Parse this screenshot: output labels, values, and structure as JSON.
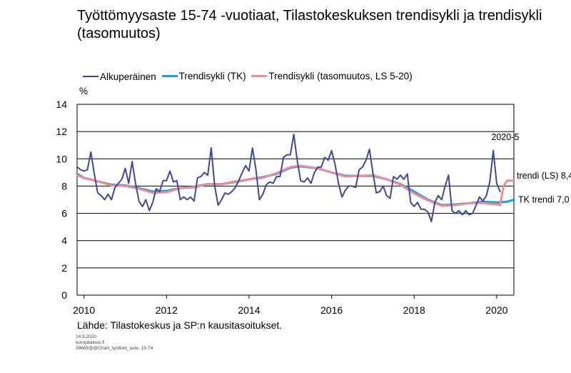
{
  "chart_data": {
    "type": "line",
    "title": "Työttömyysaste 15-74 -vuotiaat, Tilastokeskuksen trendisykli ja trendisykli (tasomuutos)",
    "ylabel": "%",
    "xlabel": "",
    "ylim": [
      0,
      14
    ],
    "yticks": [
      "0",
      "2",
      "4",
      "6",
      "8",
      "10",
      "12",
      "14"
    ],
    "xlim": [
      2009.833,
      2020.417
    ],
    "xticks": [
      "2010",
      "2012",
      "2014",
      "2016",
      "2018",
      "2020"
    ],
    "grid": "horizontal",
    "legend_position": "top",
    "series": [
      {
        "name": "Alkuperäinen",
        "color": "#404896",
        "points": [
          [
            2009.833,
            9.4
          ],
          [
            2009.917,
            9.2
          ],
          [
            2010.0,
            9.1
          ],
          [
            2010.083,
            9.2
          ],
          [
            2010.167,
            10.5
          ],
          [
            2010.25,
            8.9
          ],
          [
            2010.333,
            7.5
          ],
          [
            2010.417,
            7.3
          ],
          [
            2010.5,
            7.0
          ],
          [
            2010.583,
            7.4
          ],
          [
            2010.667,
            7.0
          ],
          [
            2010.75,
            7.9
          ],
          [
            2010.833,
            8.2
          ],
          [
            2010.917,
            8.5
          ],
          [
            2011.0,
            9.3
          ],
          [
            2011.083,
            8.2
          ],
          [
            2011.167,
            9.8
          ],
          [
            2011.25,
            8.2
          ],
          [
            2011.333,
            6.9
          ],
          [
            2011.417,
            6.5
          ],
          [
            2011.5,
            7.0
          ],
          [
            2011.583,
            6.2
          ],
          [
            2011.667,
            6.8
          ],
          [
            2011.75,
            7.8
          ],
          [
            2011.833,
            7.6
          ],
          [
            2011.917,
            8.4
          ],
          [
            2012.0,
            8.4
          ],
          [
            2012.083,
            9.1
          ],
          [
            2012.167,
            8.3
          ],
          [
            2012.25,
            8.4
          ],
          [
            2012.333,
            7.0
          ],
          [
            2012.417,
            7.2
          ],
          [
            2012.5,
            7.0
          ],
          [
            2012.583,
            7.2
          ],
          [
            2012.667,
            6.9
          ],
          [
            2012.75,
            8.6
          ],
          [
            2012.833,
            8.7
          ],
          [
            2012.917,
            9.0
          ],
          [
            2013.0,
            8.8
          ],
          [
            2013.083,
            10.8
          ],
          [
            2013.167,
            8.0
          ],
          [
            2013.25,
            6.6
          ],
          [
            2013.333,
            7.0
          ],
          [
            2013.417,
            7.5
          ],
          [
            2013.5,
            7.4
          ],
          [
            2013.583,
            7.6
          ],
          [
            2013.667,
            7.9
          ],
          [
            2013.75,
            8.4
          ],
          [
            2013.833,
            9.0
          ],
          [
            2013.917,
            9.5
          ],
          [
            2014.0,
            9.1
          ],
          [
            2014.083,
            10.8
          ],
          [
            2014.167,
            9.2
          ],
          [
            2014.25,
            7.0
          ],
          [
            2014.333,
            7.4
          ],
          [
            2014.417,
            8.1
          ],
          [
            2014.5,
            8.3
          ],
          [
            2014.583,
            8.2
          ],
          [
            2014.667,
            8.7
          ],
          [
            2014.75,
            8.7
          ],
          [
            2014.833,
            10.1
          ],
          [
            2014.917,
            10.3
          ],
          [
            2015.0,
            10.3
          ],
          [
            2015.083,
            11.8
          ],
          [
            2015.167,
            9.9
          ],
          [
            2015.25,
            8.4
          ],
          [
            2015.333,
            8.3
          ],
          [
            2015.417,
            8.6
          ],
          [
            2015.5,
            8.2
          ],
          [
            2015.583,
            9.0
          ],
          [
            2015.667,
            9.4
          ],
          [
            2015.75,
            9.4
          ],
          [
            2015.833,
            10.1
          ],
          [
            2015.917,
            9.9
          ],
          [
            2016.0,
            10.6
          ],
          [
            2016.083,
            9.6
          ],
          [
            2016.167,
            8.2
          ],
          [
            2016.25,
            7.2
          ],
          [
            2016.333,
            7.7
          ],
          [
            2016.417,
            8.0
          ],
          [
            2016.5,
            8.0
          ],
          [
            2016.583,
            7.9
          ],
          [
            2016.667,
            9.2
          ],
          [
            2016.75,
            9.4
          ],
          [
            2016.833,
            9.9
          ],
          [
            2016.917,
            10.7
          ],
          [
            2017.0,
            9.0
          ],
          [
            2017.083,
            7.5
          ],
          [
            2017.167,
            7.6
          ],
          [
            2017.25,
            8.0
          ],
          [
            2017.333,
            7.3
          ],
          [
            2017.417,
            7.1
          ],
          [
            2017.5,
            8.7
          ],
          [
            2017.583,
            8.5
          ],
          [
            2017.667,
            8.8
          ],
          [
            2017.75,
            8.5
          ],
          [
            2017.833,
            8.9
          ],
          [
            2017.917,
            6.8
          ],
          [
            2018.0,
            6.5
          ],
          [
            2018.083,
            6.8
          ],
          [
            2018.167,
            6.3
          ],
          [
            2018.25,
            6.3
          ],
          [
            2018.333,
            6.1
          ],
          [
            2018.417,
            5.4
          ],
          [
            2018.5,
            6.8
          ],
          [
            2018.583,
            7.3
          ],
          [
            2018.667,
            7.0
          ],
          [
            2018.75,
            8.0
          ],
          [
            2018.833,
            8.8
          ],
          [
            2018.917,
            6.2
          ],
          [
            2019.0,
            6.0
          ],
          [
            2019.083,
            6.2
          ],
          [
            2019.167,
            5.9
          ],
          [
            2019.25,
            6.2
          ],
          [
            2019.333,
            5.9
          ],
          [
            2019.417,
            6.0
          ],
          [
            2019.5,
            6.6
          ],
          [
            2019.583,
            7.2
          ],
          [
            2019.667,
            6.9
          ],
          [
            2019.75,
            7.3
          ],
          [
            2019.833,
            8.3
          ],
          [
            2019.917,
            10.6
          ],
          [
            2020.0,
            8.2
          ],
          [
            2020.083,
            7.6
          ]
        ]
      },
      {
        "name": "Trendisykli (TK)",
        "color": "#1f9fd9",
        "points": [
          [
            2009.833,
            8.9
          ],
          [
            2010.0,
            8.6
          ],
          [
            2010.333,
            8.35
          ],
          [
            2010.667,
            8.1
          ],
          [
            2011.0,
            8.05
          ],
          [
            2011.333,
            7.85
          ],
          [
            2011.667,
            7.6
          ],
          [
            2012.0,
            7.65
          ],
          [
            2012.333,
            7.85
          ],
          [
            2012.667,
            7.95
          ],
          [
            2013.0,
            8.15
          ],
          [
            2013.333,
            8.15
          ],
          [
            2013.667,
            8.3
          ],
          [
            2014.0,
            8.5
          ],
          [
            2014.333,
            8.65
          ],
          [
            2014.667,
            8.9
          ],
          [
            2015.0,
            9.35
          ],
          [
            2015.25,
            9.45
          ],
          [
            2015.667,
            9.3
          ],
          [
            2016.0,
            9.0
          ],
          [
            2016.333,
            8.75
          ],
          [
            2016.667,
            8.75
          ],
          [
            2017.0,
            8.75
          ],
          [
            2017.333,
            8.5
          ],
          [
            2017.667,
            8.15
          ],
          [
            2018.0,
            7.6
          ],
          [
            2018.333,
            7.0
          ],
          [
            2018.667,
            6.6
          ],
          [
            2019.0,
            6.65
          ],
          [
            2019.333,
            6.75
          ],
          [
            2019.667,
            6.85
          ],
          [
            2020.0,
            6.8
          ],
          [
            2020.25,
            6.85
          ],
          [
            2020.417,
            7.0
          ]
        ]
      },
      {
        "name": "Trendisykli (tasomuutos, LS 5-20)",
        "color": "#eb8d96",
        "points": [
          [
            2009.833,
            8.8
          ],
          [
            2010.0,
            8.6
          ],
          [
            2010.333,
            8.35
          ],
          [
            2010.667,
            8.05
          ],
          [
            2011.0,
            8.0
          ],
          [
            2011.333,
            7.8
          ],
          [
            2011.667,
            7.5
          ],
          [
            2012.0,
            7.55
          ],
          [
            2012.333,
            7.85
          ],
          [
            2012.667,
            7.9
          ],
          [
            2013.0,
            8.15
          ],
          [
            2013.333,
            8.15
          ],
          [
            2013.667,
            8.35
          ],
          [
            2014.0,
            8.5
          ],
          [
            2014.333,
            8.6
          ],
          [
            2014.667,
            8.95
          ],
          [
            2015.0,
            9.4
          ],
          [
            2015.25,
            9.5
          ],
          [
            2015.667,
            9.3
          ],
          [
            2016.0,
            9.0
          ],
          [
            2016.333,
            8.7
          ],
          [
            2016.667,
            8.75
          ],
          [
            2017.0,
            8.8
          ],
          [
            2017.333,
            8.5
          ],
          [
            2017.667,
            8.1
          ],
          [
            2018.0,
            7.45
          ],
          [
            2018.333,
            6.95
          ],
          [
            2018.667,
            6.55
          ],
          [
            2019.0,
            6.6
          ],
          [
            2019.333,
            6.75
          ],
          [
            2019.667,
            6.75
          ],
          [
            2020.0,
            6.65
          ],
          [
            2020.083,
            6.6
          ],
          [
            2020.167,
            8.0
          ],
          [
            2020.25,
            8.4
          ],
          [
            2020.417,
            8.4
          ]
        ]
      }
    ],
    "annotations": [
      {
        "text": "2020-5",
        "x": 2020.0,
        "y": 10.6
      },
      {
        "text": "trendi (LS) 8,4",
        "x": 2020.417,
        "y": 8.4
      },
      {
        "text": "TK trendi 7,0",
        "x": 2020.417,
        "y": 7.0
      }
    ]
  },
  "source_text": "Lähde:  Tilastokeskus  ja  SP:n  kausitasoitukset.",
  "meta_lines": [
    "14.9.2020",
    "eurojatalous.fi",
    "39665@@Chart_tyottom_aste, 15-74"
  ]
}
